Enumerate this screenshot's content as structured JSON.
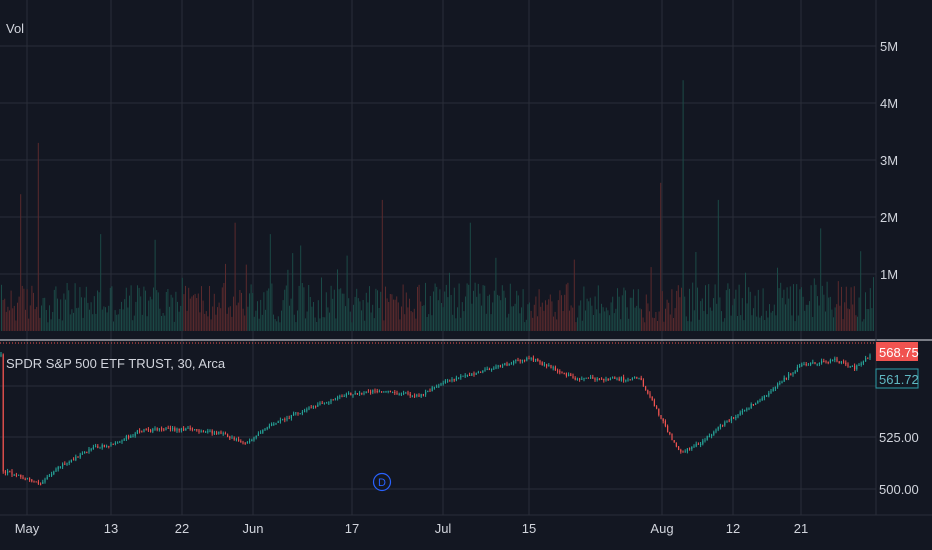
{
  "colors": {
    "background": "#131722",
    "grid": "#2a2e39",
    "text": "#d1d4dc",
    "up": "#26a69a",
    "down": "#ef5350",
    "vol_up": "#1b4a47",
    "vol_down": "#5a2a2d",
    "current_price_bg": "#f05350",
    "pane_divider": "#e0e3eb",
    "compare_line": "#2a5f88"
  },
  "volume_pane": {
    "label": "Vol",
    "axis_ticks": [
      "5M",
      "4M",
      "3M",
      "2M",
      "1M"
    ]
  },
  "price_pane": {
    "legend": "SPDR S&P 500 ETF TRUST, 30, Arca",
    "axis_ticks": [
      "525.00",
      "500.00"
    ],
    "current_price_label": "568.75",
    "secondary_price_label": "561.72",
    "dividend_marker": "D"
  },
  "time_axis": {
    "labels": [
      "May",
      "13",
      "22",
      "Jun",
      "17",
      "Jul",
      "15",
      "Aug",
      "12",
      "21"
    ]
  },
  "chart_data": {
    "type": "candlestick",
    "series_name": "SPDR S&P 500 ETF TRUST",
    "interval": "30",
    "exchange": "Arca",
    "price_ylim": [
      495,
      575
    ],
    "volume_ylim": [
      0,
      5800000
    ],
    "time_labels": [
      "May",
      "13",
      "22",
      "Jun",
      "17",
      "Jul",
      "15",
      "Aug",
      "12",
      "21"
    ],
    "approx_close_path": [
      {
        "t": "Apr 30",
        "price": 509
      },
      {
        "t": "May 1",
        "price": 505
      },
      {
        "t": "May 2",
        "price": 502
      },
      {
        "t": "May 6",
        "price": 511
      },
      {
        "t": "May 10",
        "price": 520
      },
      {
        "t": "May 13",
        "price": 521
      },
      {
        "t": "May 16",
        "price": 528
      },
      {
        "t": "May 22",
        "price": 529
      },
      {
        "t": "May 28",
        "price": 527
      },
      {
        "t": "May 31",
        "price": 522
      },
      {
        "t": "Jun 5",
        "price": 532
      },
      {
        "t": "Jun 12",
        "price": 541
      },
      {
        "t": "Jun 17",
        "price": 546
      },
      {
        "t": "Jun 21",
        "price": 547
      },
      {
        "t": "Jun 28",
        "price": 545
      },
      {
        "t": "Jul 3",
        "price": 551
      },
      {
        "t": "Jul 10",
        "price": 558
      },
      {
        "t": "Jul 16",
        "price": 563
      },
      {
        "t": "Jul 24",
        "price": 553
      },
      {
        "t": "Jul 31",
        "price": 553
      },
      {
        "t": "Aug 2",
        "price": 533
      },
      {
        "t": "Aug 5",
        "price": 517
      },
      {
        "t": "Aug 7",
        "price": 522
      },
      {
        "t": "Aug 9",
        "price": 532
      },
      {
        "t": "Aug 14",
        "price": 543
      },
      {
        "t": "Aug 19",
        "price": 559
      },
      {
        "t": "Aug 22",
        "price": 561
      },
      {
        "t": "Aug 26",
        "price": 562
      },
      {
        "t": "Aug 28",
        "price": 558
      },
      {
        "t": "Aug 30",
        "price": 564
      }
    ],
    "last_price": 568.75,
    "secondary_price": 561.72,
    "volume_max_approx": 4400000,
    "volume_typical_approx": 600000
  }
}
